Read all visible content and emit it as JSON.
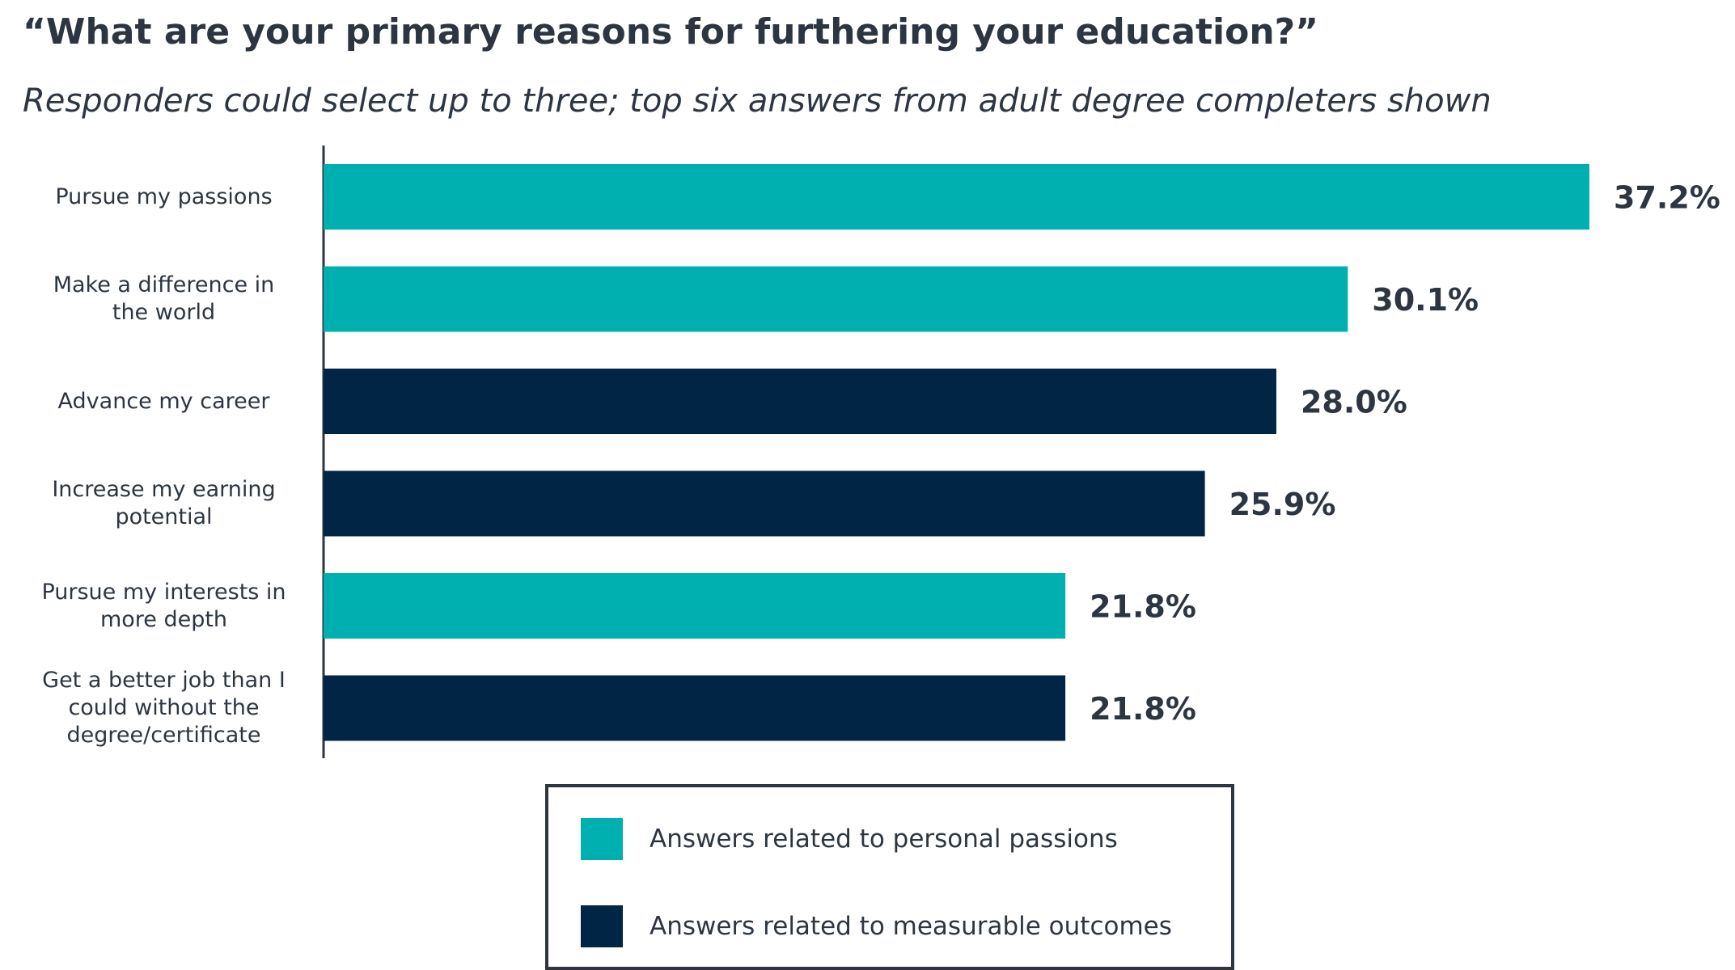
{
  "header": {
    "title": "“What are your primary reasons for furthering your education?”",
    "subtitle": "Responders could select up to three; top six answers from adult degree completers shown"
  },
  "colors": {
    "personal_passions": "#00b0b0",
    "measurable_outcomes": "#002545",
    "text": "#2d3640"
  },
  "chart_data": {
    "type": "bar",
    "orientation": "horizontal",
    "title": "“What are your primary reasons for furthering your education?”",
    "subtitle": "Responders could select up to three; top six answers from adult degree completers shown",
    "categories": [
      [
        "Pursue my passions"
      ],
      [
        "Make a difference in",
        "the world"
      ],
      [
        "Advance my career"
      ],
      [
        "Increase my earning",
        "potential"
      ],
      [
        "Pursue my interests in",
        "more depth"
      ],
      [
        "Get a better job than I",
        "could without the",
        "degree/certificate"
      ]
    ],
    "values": [
      37.2,
      30.1,
      28.0,
      25.9,
      21.8,
      21.8
    ],
    "value_labels": [
      "37.2%",
      "30.1%",
      "28.0%",
      "25.9%",
      "21.8%",
      "21.8%"
    ],
    "groups": [
      "personal",
      "personal",
      "measurable",
      "measurable",
      "personal",
      "measurable"
    ],
    "xlim": [
      0,
      37.2
    ],
    "grid": false,
    "legend_position": "bottom-center"
  },
  "legend": {
    "items": [
      {
        "label": "Answers related to personal passions",
        "group": "personal"
      },
      {
        "label": "Answers related to measurable outcomes",
        "group": "measurable"
      }
    ]
  }
}
